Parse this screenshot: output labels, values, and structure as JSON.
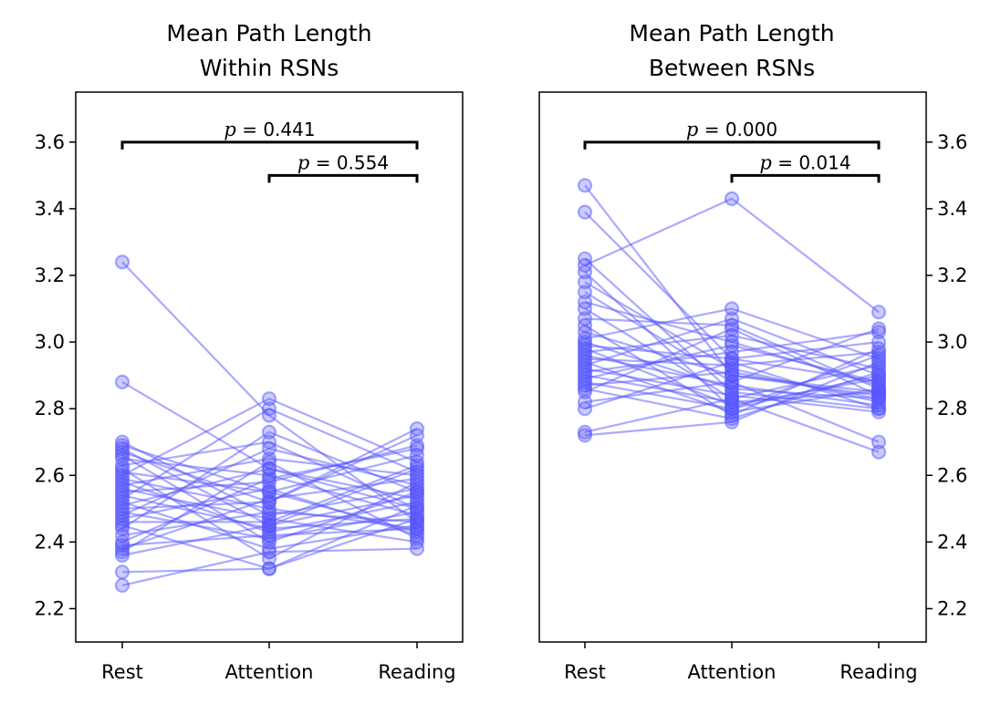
{
  "chart_data": [
    {
      "type": "line",
      "title_lines": [
        "Mean Path Length",
        "Within RSNs"
      ],
      "categories": [
        "Rest",
        "Attention",
        "Reading"
      ],
      "ylim": [
        2.1,
        3.75
      ],
      "yticks": [
        "2.2",
        "2.4",
        "2.6",
        "2.8",
        "3.0",
        "3.2",
        "3.4",
        "3.6"
      ],
      "y_axis_side": "left",
      "color": "#5555ff",
      "annotations": [
        {
          "from": "Rest",
          "to": "Reading",
          "level": 3.6,
          "p_symbol": "p",
          "text": " = 0.441"
        },
        {
          "from": "Attention",
          "to": "Reading",
          "level": 3.5,
          "p_symbol": "p",
          "text": " = 0.554"
        }
      ],
      "series": [
        {
          "values": [
            3.24,
            2.78,
            2.46
          ]
        },
        {
          "values": [
            2.88,
            2.62,
            2.5
          ]
        },
        {
          "values": [
            2.7,
            2.48,
            2.56
          ]
        },
        {
          "values": [
            2.69,
            2.55,
            2.43
          ]
        },
        {
          "values": [
            2.68,
            2.45,
            2.62
          ]
        },
        {
          "values": [
            2.67,
            2.52,
            2.72
          ]
        },
        {
          "values": [
            2.66,
            2.4,
            2.55
          ]
        },
        {
          "values": [
            2.65,
            2.6,
            2.48
          ]
        },
        {
          "values": [
            2.63,
            2.7,
            2.5
          ]
        },
        {
          "values": [
            2.62,
            2.35,
            2.58
          ]
        },
        {
          "values": [
            2.61,
            2.55,
            2.66
          ]
        },
        {
          "values": [
            2.6,
            2.83,
            2.64
          ]
        },
        {
          "values": [
            2.59,
            2.5,
            2.44
          ]
        },
        {
          "values": [
            2.58,
            2.43,
            2.52
          ]
        },
        {
          "values": [
            2.57,
            2.65,
            2.6
          ]
        },
        {
          "values": [
            2.56,
            2.47,
            2.4
          ]
        },
        {
          "values": [
            2.55,
            2.58,
            2.69
          ]
        },
        {
          "values": [
            2.54,
            2.44,
            2.47
          ]
        },
        {
          "values": [
            2.53,
            2.8,
            2.61
          ]
        },
        {
          "values": [
            2.52,
            2.38,
            2.45
          ]
        },
        {
          "values": [
            2.51,
            2.62,
            2.53
          ]
        },
        {
          "values": [
            2.5,
            2.52,
            2.74
          ]
        },
        {
          "values": [
            2.49,
            2.41,
            2.49
          ]
        },
        {
          "values": [
            2.48,
            2.68,
            2.57
          ]
        },
        {
          "values": [
            2.47,
            2.56,
            2.42
          ]
        },
        {
          "values": [
            2.46,
            2.46,
            2.63
          ]
        },
        {
          "values": [
            2.45,
            2.32,
            2.51
          ]
        },
        {
          "values": [
            2.44,
            2.73,
            2.55
          ]
        },
        {
          "values": [
            2.42,
            2.49,
            2.46
          ]
        },
        {
          "values": [
            2.4,
            2.59,
            2.68
          ]
        },
        {
          "values": [
            2.39,
            2.42,
            2.44
          ]
        },
        {
          "values": [
            2.38,
            2.53,
            2.59
          ]
        },
        {
          "values": [
            2.37,
            2.64,
            2.41
          ]
        },
        {
          "values": [
            2.36,
            2.45,
            2.54
          ]
        },
        {
          "values": [
            2.31,
            2.32,
            2.47
          ]
        },
        {
          "values": [
            2.27,
            2.37,
            2.38
          ]
        }
      ]
    },
    {
      "type": "line",
      "title_lines": [
        "Mean Path Length",
        "Between RSNs"
      ],
      "categories": [
        "Rest",
        "Attention",
        "Reading"
      ],
      "ylim": [
        2.1,
        3.75
      ],
      "yticks": [
        "2.2",
        "2.4",
        "2.6",
        "2.8",
        "3.0",
        "3.2",
        "3.4",
        "3.6"
      ],
      "y_axis_side": "right",
      "color": "#5555ff",
      "annotations": [
        {
          "from": "Rest",
          "to": "Reading",
          "level": 3.6,
          "p_symbol": "p",
          "text": " = 0.000"
        },
        {
          "from": "Attention",
          "to": "Reading",
          "level": 3.5,
          "p_symbol": "p",
          "text": " = 0.014"
        }
      ],
      "series": [
        {
          "values": [
            3.47,
            2.9,
            2.85
          ]
        },
        {
          "values": [
            3.39,
            2.95,
            2.88
          ]
        },
        {
          "values": [
            3.25,
            2.85,
            2.8
          ]
        },
        {
          "values": [
            3.23,
            3.43,
            3.09
          ]
        },
        {
          "values": [
            3.21,
            2.8,
            2.9
          ]
        },
        {
          "values": [
            3.18,
            2.92,
            2.82
          ]
        },
        {
          "values": [
            3.15,
            2.88,
            3.04
          ]
        },
        {
          "values": [
            3.12,
            3.0,
            2.87
          ]
        },
        {
          "values": [
            3.1,
            2.83,
            2.93
          ]
        },
        {
          "values": [
            3.07,
            3.05,
            2.86
          ]
        },
        {
          "values": [
            3.05,
            2.78,
            2.98
          ]
        },
        {
          "values": [
            3.03,
            2.9,
            2.84
          ]
        },
        {
          "values": [
            3.01,
            3.1,
            2.95
          ]
        },
        {
          "values": [
            3.0,
            2.86,
            2.83
          ]
        },
        {
          "values": [
            2.99,
            2.95,
            3.0
          ]
        },
        {
          "values": [
            2.98,
            2.81,
            2.89
          ]
        },
        {
          "values": [
            2.97,
            3.02,
            2.92
          ]
        },
        {
          "values": [
            2.96,
            2.87,
            2.81
          ]
        },
        {
          "values": [
            2.95,
            2.93,
            2.97
          ]
        },
        {
          "values": [
            2.94,
            2.79,
            2.86
          ]
        },
        {
          "values": [
            2.93,
            3.07,
            2.9
          ]
        },
        {
          "values": [
            2.92,
            2.84,
            2.79
          ]
        },
        {
          "values": [
            2.91,
            2.97,
            3.03
          ]
        },
        {
          "values": [
            2.9,
            2.82,
            2.85
          ]
        },
        {
          "values": [
            2.89,
            2.99,
            2.88
          ]
        },
        {
          "values": [
            2.88,
            2.8,
            2.96
          ]
        },
        {
          "values": [
            2.87,
            2.91,
            2.83
          ]
        },
        {
          "values": [
            2.86,
            2.77,
            2.91
          ]
        },
        {
          "values": [
            2.85,
            3.04,
            2.84
          ]
        },
        {
          "values": [
            2.82,
            2.88,
            2.7
          ]
        },
        {
          "values": [
            2.8,
            2.94,
            2.8
          ]
        },
        {
          "values": [
            2.73,
            2.83,
            2.67
          ]
        },
        {
          "values": [
            2.72,
            2.76,
            2.94
          ]
        }
      ]
    }
  ]
}
